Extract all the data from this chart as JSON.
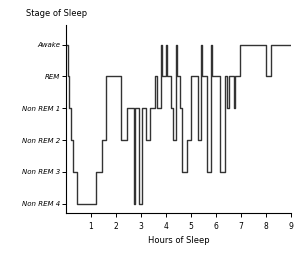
{
  "title": "Stage of Sleep",
  "xlabel": "Hours of Sleep",
  "ytick_labels": [
    "Non REM 4",
    "Non REM 3",
    "Non REM 2",
    "Non REM 1",
    "REM",
    "Awake"
  ],
  "ytick_values": [
    0,
    1,
    2,
    3,
    4,
    5
  ],
  "xlim": [
    0,
    9
  ],
  "ylim": [
    -0.3,
    5.6
  ],
  "xticks": [
    1,
    2,
    3,
    4,
    5,
    6,
    7,
    8,
    9
  ],
  "line_color": "#333333",
  "line_width": 1.0,
  "bg_color": "#ffffff",
  "sleep_stages": [
    [
      0.0,
      5
    ],
    [
      0.07,
      5
    ],
    [
      0.07,
      4
    ],
    [
      0.12,
      4
    ],
    [
      0.12,
      3
    ],
    [
      0.18,
      3
    ],
    [
      0.18,
      2
    ],
    [
      0.28,
      2
    ],
    [
      0.28,
      1
    ],
    [
      0.45,
      1
    ],
    [
      0.45,
      0
    ],
    [
      1.2,
      0
    ],
    [
      1.2,
      1
    ],
    [
      1.45,
      1
    ],
    [
      1.45,
      2
    ],
    [
      1.6,
      2
    ],
    [
      1.6,
      4
    ],
    [
      2.2,
      4
    ],
    [
      2.2,
      2
    ],
    [
      2.45,
      2
    ],
    [
      2.45,
      3
    ],
    [
      2.7,
      3
    ],
    [
      2.7,
      0
    ],
    [
      2.77,
      0
    ],
    [
      2.77,
      3
    ],
    [
      2.92,
      3
    ],
    [
      2.92,
      0
    ],
    [
      3.02,
      0
    ],
    [
      3.02,
      3
    ],
    [
      3.2,
      3
    ],
    [
      3.2,
      2
    ],
    [
      3.35,
      2
    ],
    [
      3.35,
      3
    ],
    [
      3.55,
      3
    ],
    [
      3.55,
      4
    ],
    [
      3.65,
      4
    ],
    [
      3.65,
      3
    ],
    [
      3.78,
      3
    ],
    [
      3.78,
      5
    ],
    [
      3.83,
      5
    ],
    [
      3.83,
      4
    ],
    [
      4.0,
      4
    ],
    [
      4.0,
      5
    ],
    [
      4.05,
      5
    ],
    [
      4.05,
      4
    ],
    [
      4.18,
      4
    ],
    [
      4.18,
      3
    ],
    [
      4.28,
      3
    ],
    [
      4.28,
      2
    ],
    [
      4.38,
      2
    ],
    [
      4.38,
      5
    ],
    [
      4.43,
      5
    ],
    [
      4.43,
      4
    ],
    [
      4.55,
      4
    ],
    [
      4.55,
      3
    ],
    [
      4.65,
      3
    ],
    [
      4.65,
      1
    ],
    [
      4.82,
      1
    ],
    [
      4.82,
      2
    ],
    [
      5.0,
      2
    ],
    [
      5.0,
      4
    ],
    [
      5.28,
      4
    ],
    [
      5.28,
      2
    ],
    [
      5.38,
      2
    ],
    [
      5.38,
      5
    ],
    [
      5.43,
      5
    ],
    [
      5.43,
      4
    ],
    [
      5.65,
      4
    ],
    [
      5.65,
      1
    ],
    [
      5.8,
      1
    ],
    [
      5.8,
      5
    ],
    [
      5.85,
      5
    ],
    [
      5.85,
      4
    ],
    [
      6.15,
      4
    ],
    [
      6.15,
      1
    ],
    [
      6.35,
      1
    ],
    [
      6.35,
      4
    ],
    [
      6.45,
      4
    ],
    [
      6.45,
      3
    ],
    [
      6.5,
      3
    ],
    [
      6.5,
      4
    ],
    [
      6.72,
      4
    ],
    [
      6.72,
      3
    ],
    [
      6.77,
      3
    ],
    [
      6.77,
      4
    ],
    [
      6.95,
      4
    ],
    [
      6.95,
      5
    ],
    [
      8.0,
      5
    ],
    [
      8.0,
      4
    ],
    [
      8.18,
      4
    ],
    [
      8.18,
      5
    ],
    [
      9.0,
      5
    ]
  ]
}
